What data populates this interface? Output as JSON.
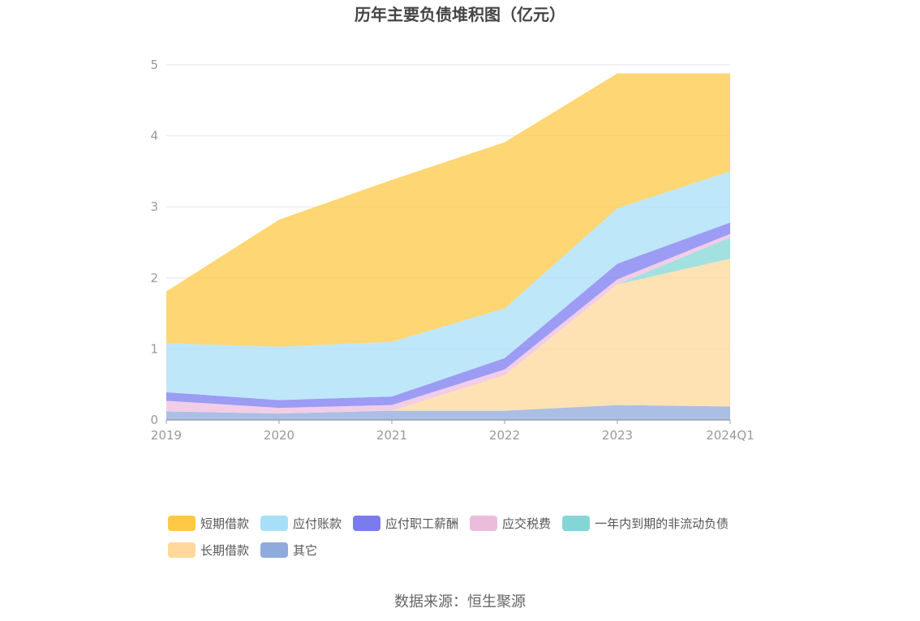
{
  "chart_data": {
    "type": "area",
    "stacked": true,
    "title": "历年主要负债堆积图（亿元）",
    "categories": [
      "2019",
      "2020",
      "2021",
      "2022",
      "2023",
      "2024Q1"
    ],
    "ylim": [
      0,
      5
    ],
    "yticks": [
      "0",
      "1",
      "2",
      "3",
      "4",
      "5"
    ],
    "grid": true,
    "legend_position": "bottom",
    "series": [
      {
        "name": "其它",
        "color": "#8FAADC",
        "values": [
          0.12,
          0.09,
          0.13,
          0.13,
          0.21,
          0.19
        ]
      },
      {
        "name": "长期借款",
        "color": "#FFD89A",
        "values": [
          0.0,
          0.0,
          0.0,
          0.5,
          1.7,
          2.08
        ]
      },
      {
        "name": "一年内到期的非流动负债",
        "color": "#84D6D6",
        "values": [
          0.0,
          0.0,
          0.0,
          0.0,
          0.0,
          0.3
        ]
      },
      {
        "name": "应交税费",
        "color": "#EDBCDD",
        "values": [
          0.15,
          0.08,
          0.08,
          0.08,
          0.07,
          0.05
        ]
      },
      {
        "name": "应付职工薪酬",
        "color": "#7B7BF0",
        "values": [
          0.12,
          0.11,
          0.12,
          0.16,
          0.22,
          0.16
        ]
      },
      {
        "name": "应付账款",
        "color": "#A8DFF8",
        "values": [
          0.69,
          0.75,
          0.77,
          0.7,
          0.78,
          0.72
        ]
      },
      {
        "name": "短期借款",
        "color": "#FFC845",
        "values": [
          0.73,
          1.79,
          2.28,
          2.34,
          1.9,
          1.38
        ]
      }
    ]
  },
  "legend_order": [
    [
      "短期借款",
      "应付账款",
      "应付职工薪酬",
      "应交税费",
      "一年内到期的非流动负债"
    ],
    [
      "长期借款",
      "其它"
    ]
  ],
  "source": "数据来源：恒生聚源"
}
